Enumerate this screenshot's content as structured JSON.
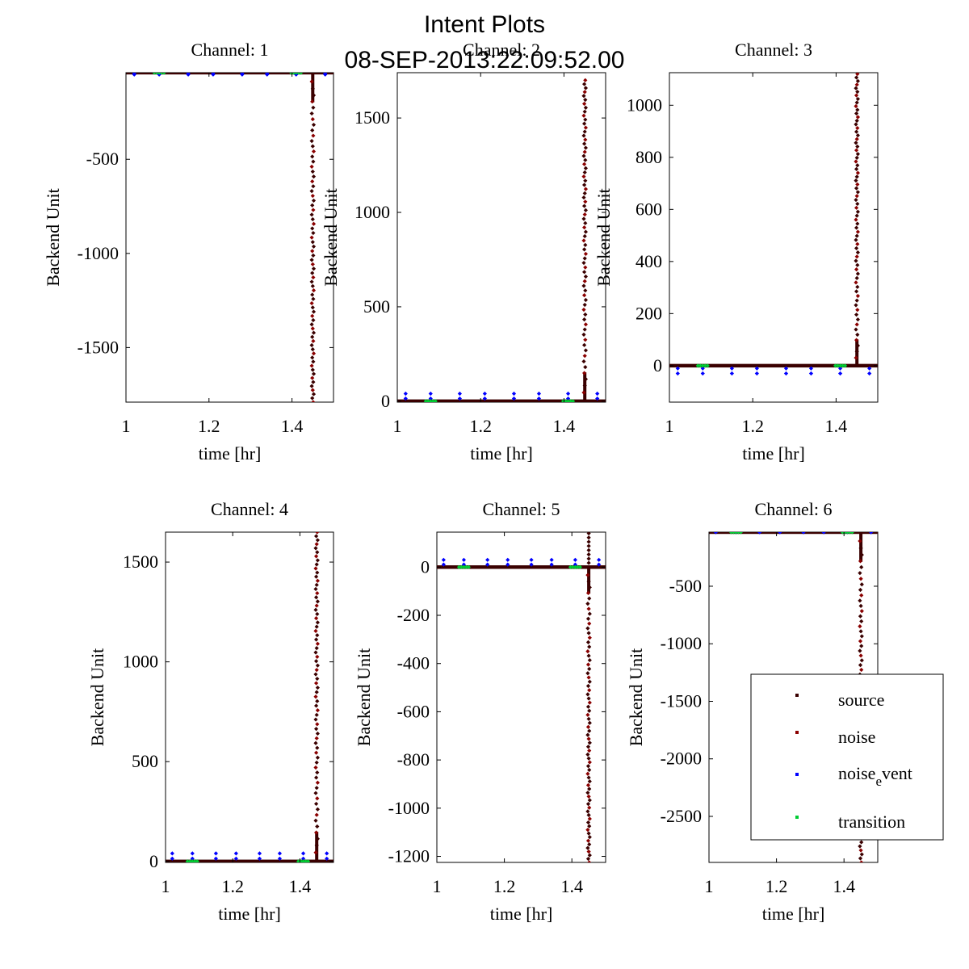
{
  "figure": {
    "title": "Intent Plots",
    "subtitle": "08-SEP-2013:22:09:52.00"
  },
  "legend": {
    "placement": "right-middle",
    "entries": [
      {
        "label": "source",
        "color": "#3a0000"
      },
      {
        "label": "noise",
        "color": "#8b0000"
      },
      {
        "label": "noise_event",
        "label_main": "noise",
        "label_sub": "e",
        "label_rest": "vent",
        "color": "#0000ff"
      },
      {
        "label": "transition",
        "color": "#00cc33"
      }
    ]
  },
  "chart_data": [
    {
      "type": "scatter",
      "title": "Channel: 1",
      "xlabel": "time [hr]",
      "ylabel": "Backend Unit",
      "xlim": [
        1.0,
        1.5
      ],
      "ylim": [
        -1790,
        -40
      ],
      "xticks": [
        1,
        1.2,
        1.4
      ],
      "xtick_labels": [
        "1",
        "1.2",
        "1.4"
      ],
      "yticks": [
        -500,
        -1000,
        -1500
      ],
      "ytick_labels": [
        "-500",
        "-1000",
        "-1500"
      ],
      "baseline": -40,
      "marker_offset": -10,
      "spike": {
        "x": 1.45,
        "extreme": -1790
      },
      "series": [
        {
          "name": "source",
          "x_range": [
            1.0,
            1.5
          ],
          "y": -40
        },
        {
          "name": "noise_event",
          "x": [
            1.02,
            1.08,
            1.15,
            1.21,
            1.28,
            1.34,
            1.41,
            1.48
          ],
          "y": -50
        },
        {
          "name": "transition",
          "x": [
            1.08,
            1.41
          ],
          "y": -40
        }
      ]
    },
    {
      "type": "scatter",
      "title": "Channel: 2",
      "xlabel": "time [hr]",
      "ylabel": "Backend Unit",
      "xlim": [
        1.0,
        1.5
      ],
      "ylim": [
        -5,
        1740
      ],
      "xticks": [
        1,
        1.2,
        1.4
      ],
      "xtick_labels": [
        "1",
        "1.2",
        "1.4"
      ],
      "yticks": [
        0,
        500,
        1000,
        1500
      ],
      "ytick_labels": [
        "0",
        "500",
        "1000",
        "1500"
      ],
      "baseline": 0,
      "marker_offset": 40,
      "spike": {
        "x": 1.45,
        "extreme": 1700
      },
      "series": [
        {
          "name": "source",
          "x_range": [
            1.0,
            1.5
          ],
          "y": 0
        },
        {
          "name": "noise_event",
          "x": [
            1.02,
            1.08,
            1.15,
            1.21,
            1.28,
            1.34,
            1.41,
            1.48
          ],
          "y": 40
        },
        {
          "name": "transition",
          "x": [
            1.08,
            1.41
          ],
          "y": 0
        }
      ]
    },
    {
      "type": "scatter",
      "title": "Channel: 3",
      "xlabel": "time [hr]",
      "ylabel": "Backend Unit",
      "xlim": [
        1.0,
        1.5
      ],
      "ylim": [
        -140,
        1125
      ],
      "xticks": [
        1,
        1.2,
        1.4
      ],
      "xtick_labels": [
        "1",
        "1.2",
        "1.4"
      ],
      "yticks": [
        0,
        200,
        400,
        600,
        800,
        1000
      ],
      "ytick_labels": [
        "0",
        "200",
        "400",
        "600",
        "800",
        "1000"
      ],
      "baseline": 0,
      "marker_offset": -30,
      "spike": {
        "x": 1.45,
        "extreme": 1120
      },
      "series": [
        {
          "name": "source",
          "x_range": [
            1.0,
            1.5
          ],
          "y": 0
        },
        {
          "name": "noise_event",
          "x": [
            1.02,
            1.08,
            1.15,
            1.21,
            1.28,
            1.34,
            1.41,
            1.48
          ],
          "y": -30
        },
        {
          "name": "transition",
          "x": [
            1.08,
            1.41
          ],
          "y": 0
        }
      ]
    },
    {
      "type": "scatter",
      "title": "Channel: 4",
      "xlabel": "time [hr]",
      "ylabel": "Backend Unit",
      "xlim": [
        1.0,
        1.5
      ],
      "ylim": [
        -5,
        1650
      ],
      "xticks": [
        1,
        1.2,
        1.4
      ],
      "xtick_labels": [
        "1",
        "1.2",
        "1.4"
      ],
      "yticks": [
        0,
        500,
        1000,
        1500
      ],
      "ytick_labels": [
        "0",
        "500",
        "1000",
        "1500"
      ],
      "baseline": 0,
      "marker_offset": 40,
      "spike": {
        "x": 1.45,
        "extreme": 1650
      },
      "series": [
        {
          "name": "source",
          "x_range": [
            1.0,
            1.5
          ],
          "y": 0
        },
        {
          "name": "noise_event",
          "x": [
            1.02,
            1.08,
            1.15,
            1.21,
            1.28,
            1.34,
            1.41,
            1.48
          ],
          "y": 40
        },
        {
          "name": "transition",
          "x": [
            1.08,
            1.41
          ],
          "y": 0
        }
      ]
    },
    {
      "type": "scatter",
      "title": "Channel: 5",
      "xlabel": "time [hr]",
      "ylabel": "Backend Unit",
      "xlim": [
        1.0,
        1.5
      ],
      "ylim": [
        -1225,
        145
      ],
      "xticks": [
        1,
        1.2,
        1.4
      ],
      "xtick_labels": [
        "1",
        "1.2",
        "1.4"
      ],
      "yticks": [
        0,
        -200,
        -400,
        -600,
        -800,
        -1000,
        -1200
      ],
      "ytick_labels": [
        "0",
        "-200",
        "-400",
        "-600",
        "-800",
        "-1000",
        "-1200"
      ],
      "baseline": 0,
      "marker_offset": 30,
      "spike": {
        "x": 1.45,
        "extreme": -1225,
        "up": 140
      },
      "series": [
        {
          "name": "source",
          "x_range": [
            1.0,
            1.5
          ],
          "y": 0
        },
        {
          "name": "noise_event",
          "x": [
            1.02,
            1.08,
            1.15,
            1.21,
            1.28,
            1.34,
            1.41,
            1.48
          ],
          "y": 30
        },
        {
          "name": "transition",
          "x": [
            1.08,
            1.41
          ],
          "y": 0
        }
      ]
    },
    {
      "type": "scatter",
      "title": "Channel: 6",
      "xlabel": "time [hr]",
      "ylabel": "Backend Unit",
      "xlim": [
        1.0,
        1.5
      ],
      "ylim": [
        -2900,
        -30
      ],
      "xticks": [
        1,
        1.2,
        1.4
      ],
      "xtick_labels": [
        "1",
        "1.2",
        "1.4"
      ],
      "yticks": [
        -500,
        -1000,
        -1500,
        -2000,
        -2500
      ],
      "ytick_labels": [
        "-500",
        "-1000",
        "-1500",
        "-2000",
        "-2500"
      ],
      "baseline": -30,
      "marker_offset": 0,
      "spike": {
        "x": 1.45,
        "extreme": -2900
      },
      "series": [
        {
          "name": "source",
          "x_range": [
            1.0,
            1.5
          ],
          "y": -30
        },
        {
          "name": "noise_event",
          "x": [
            1.02,
            1.08,
            1.15,
            1.21,
            1.28,
            1.34,
            1.41,
            1.48
          ],
          "y": -30
        },
        {
          "name": "transition",
          "x": [
            1.08,
            1.41
          ],
          "y": -30
        }
      ]
    }
  ]
}
